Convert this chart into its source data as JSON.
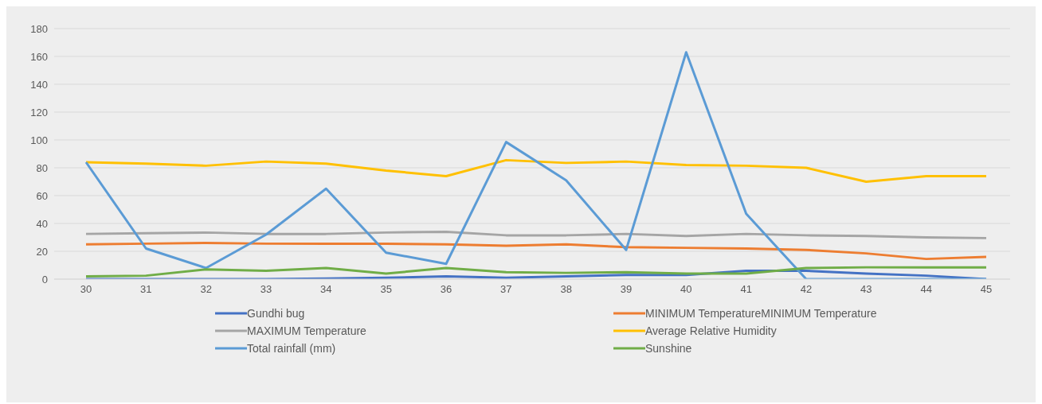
{
  "chart_data": {
    "type": "line",
    "categories": [
      "30",
      "31",
      "32",
      "33",
      "34",
      "35",
      "36",
      "37",
      "38",
      "39",
      "40",
      "41",
      "42",
      "43",
      "44",
      "45"
    ],
    "series": [
      {
        "name": "Gundhi bug",
        "color": "#4472c4",
        "values": [
          0,
          0,
          0,
          0,
          0.5,
          1,
          2,
          1,
          2,
          3,
          3,
          6,
          6,
          4,
          2.5,
          0
        ]
      },
      {
        "name": "MINIMUM TemperatureMINIMUM Temperature",
        "color": "#ed7d31",
        "values": [
          25,
          25.5,
          26,
          25.5,
          25.5,
          25.5,
          25,
          24,
          25,
          23,
          22.5,
          22,
          21,
          18.5,
          14.5,
          16
        ]
      },
      {
        "name": "MAXIMUM Temperature",
        "color": "#a5a5a5",
        "values": [
          32.5,
          33,
          33.5,
          32.5,
          32.5,
          33.5,
          34,
          31.5,
          31.5,
          32.5,
          31,
          32.5,
          31.5,
          31,
          30,
          29.5
        ]
      },
      {
        "name": "Average Relative Humidity",
        "color": "#ffc000",
        "values": [
          84,
          83,
          81.5,
          84.5,
          83,
          78,
          74,
          85.5,
          83.5,
          84.5,
          82,
          81.5,
          80,
          70,
          74,
          74
        ]
      },
      {
        "name": "Total rainfall  (mm)",
        "color": "#5b9bd5",
        "values": [
          84,
          22,
          8,
          32,
          65,
          19,
          11,
          98.5,
          71,
          21,
          163,
          47,
          0,
          0,
          0,
          0
        ]
      },
      {
        "name": "Sunshine",
        "color": "#70ad47",
        "values": [
          2,
          2.5,
          7,
          6,
          8,
          4,
          8,
          5,
          4.5,
          5,
          4,
          4,
          8,
          8.5,
          8.5,
          8.5
        ]
      }
    ],
    "ylim": [
      0,
      180
    ],
    "yticks": [
      0,
      20,
      40,
      60,
      80,
      100,
      120,
      140,
      160,
      180
    ],
    "grid": "y",
    "legend": "bottom",
    "marker": "none",
    "line_style": "solid"
  }
}
